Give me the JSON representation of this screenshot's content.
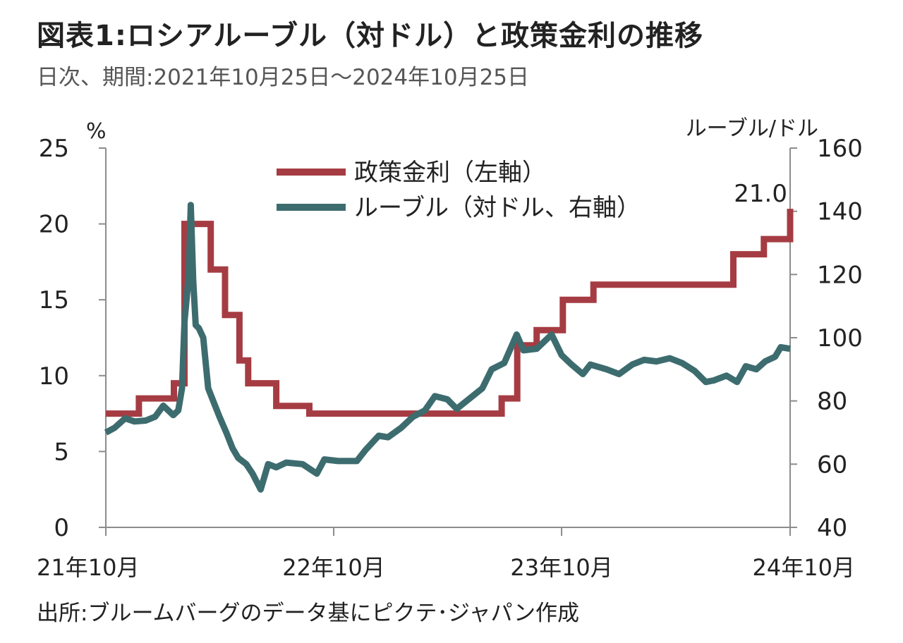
{
  "header": {
    "title": "図表1:ロシアルーブル（対ドル）と政策金利の推移",
    "subtitle": "日次、期間:2021年10月25日～2024年10月25日"
  },
  "footer": {
    "source": "出所:ブルームバーグのデータ基にピクテ･ジャパン作成"
  },
  "chart_data": {
    "type": "line",
    "left_axis": {
      "unit_label": "%",
      "range": [
        0,
        25
      ],
      "ticks": [
        0,
        5,
        10,
        15,
        20,
        25
      ]
    },
    "right_axis": {
      "unit_label": "ルーブル/ドル",
      "range": [
        40,
        160
      ],
      "ticks": [
        40,
        60,
        80,
        100,
        120,
        140,
        160
      ]
    },
    "x_axis": {
      "range": [
        "2021-10-25",
        "2024-10-25"
      ],
      "ticks": [
        {
          "date": "2021-10-25",
          "label": "21年10月"
        },
        {
          "date": "2022-10-25",
          "label": "22年10月"
        },
        {
          "date": "2023-10-25",
          "label": "23年10月"
        },
        {
          "date": "2024-10-25",
          "label": "24年10月"
        }
      ]
    },
    "grid": "none",
    "legend": {
      "placement": "top-center"
    },
    "colors": {
      "policy_rate": "#a63c43",
      "ruble": "#3d6c6f"
    },
    "annotation": {
      "text": "21.0",
      "date": "2024-10-25",
      "value": 21.0
    },
    "series": [
      {
        "name": "政策金利（左軸）",
        "axis": "left",
        "shape": "step",
        "points": [
          [
            "2021-10-25",
            7.5
          ],
          [
            "2021-12-17",
            8.5
          ],
          [
            "2022-02-11",
            9.5
          ],
          [
            "2022-02-28",
            20.0
          ],
          [
            "2022-04-11",
            17.0
          ],
          [
            "2022-05-04",
            14.0
          ],
          [
            "2022-05-27",
            11.0
          ],
          [
            "2022-06-10",
            9.5
          ],
          [
            "2022-07-25",
            8.0
          ],
          [
            "2022-09-16",
            7.5
          ],
          [
            "2023-07-21",
            8.5
          ],
          [
            "2023-08-15",
            12.0
          ],
          [
            "2023-09-15",
            13.0
          ],
          [
            "2023-10-27",
            15.0
          ],
          [
            "2023-12-15",
            16.0
          ],
          [
            "2024-07-26",
            18.0
          ],
          [
            "2024-09-13",
            19.0
          ],
          [
            "2024-10-25",
            21.0
          ]
        ]
      },
      {
        "name": "ルーブル（対ドル、右軸）",
        "axis": "right",
        "shape": "line",
        "points": [
          [
            "2021-10-25",
            70.0
          ],
          [
            "2021-11-08",
            71.5
          ],
          [
            "2021-11-25",
            74.5
          ],
          [
            "2021-12-10",
            73.5
          ],
          [
            "2021-12-28",
            73.8
          ],
          [
            "2022-01-12",
            75.0
          ],
          [
            "2022-01-25",
            78.5
          ],
          [
            "2022-02-10",
            75.5
          ],
          [
            "2022-02-18",
            77.0
          ],
          [
            "2022-02-24",
            84.0
          ],
          [
            "2022-02-28",
            105.0
          ],
          [
            "2022-03-07",
            120.0
          ],
          [
            "2022-03-10",
            142.0
          ],
          [
            "2022-03-14",
            118.0
          ],
          [
            "2022-03-18",
            104.0
          ],
          [
            "2022-03-23",
            103.0
          ],
          [
            "2022-03-30",
            100.0
          ],
          [
            "2022-04-07",
            84.0
          ],
          [
            "2022-04-15",
            80.0
          ],
          [
            "2022-04-25",
            75.0
          ],
          [
            "2022-05-06",
            70.0
          ],
          [
            "2022-05-16",
            65.0
          ],
          [
            "2022-05-25",
            62.0
          ],
          [
            "2022-06-07",
            60.0
          ],
          [
            "2022-06-17",
            57.0
          ],
          [
            "2022-06-30",
            52.0
          ],
          [
            "2022-07-12",
            60.0
          ],
          [
            "2022-07-25",
            59.0
          ],
          [
            "2022-08-10",
            60.5
          ],
          [
            "2022-09-05",
            60.0
          ],
          [
            "2022-09-28",
            57.0
          ],
          [
            "2022-10-10",
            61.5
          ],
          [
            "2022-11-01",
            61.0
          ],
          [
            "2022-12-01",
            61.0
          ],
          [
            "2022-12-15",
            64.5
          ],
          [
            "2023-01-05",
            69.0
          ],
          [
            "2023-01-20",
            68.5
          ],
          [
            "2023-02-10",
            71.5
          ],
          [
            "2023-03-01",
            75.0
          ],
          [
            "2023-03-20",
            77.0
          ],
          [
            "2023-04-05",
            81.5
          ],
          [
            "2023-04-25",
            80.5
          ],
          [
            "2023-05-10",
            77.5
          ],
          [
            "2023-06-01",
            81.0
          ],
          [
            "2023-06-20",
            84.0
          ],
          [
            "2023-07-05",
            90.0
          ],
          [
            "2023-07-25",
            92.0
          ],
          [
            "2023-08-14",
            101.0
          ],
          [
            "2023-08-25",
            96.0
          ],
          [
            "2023-09-15",
            96.5
          ],
          [
            "2023-10-09",
            101.0
          ],
          [
            "2023-10-25",
            94.5
          ],
          [
            "2023-11-10",
            91.5
          ],
          [
            "2023-11-28",
            88.5
          ],
          [
            "2023-12-10",
            91.5
          ],
          [
            "2024-01-05",
            90.0
          ],
          [
            "2024-01-25",
            88.5
          ],
          [
            "2024-02-15",
            91.5
          ],
          [
            "2024-03-05",
            93.0
          ],
          [
            "2024-03-25",
            92.5
          ],
          [
            "2024-04-15",
            93.5
          ],
          [
            "2024-05-05",
            92.0
          ],
          [
            "2024-05-25",
            89.5
          ],
          [
            "2024-06-12",
            86.0
          ],
          [
            "2024-06-25",
            86.5
          ],
          [
            "2024-07-15",
            88.0
          ],
          [
            "2024-08-01",
            86.0
          ],
          [
            "2024-08-15",
            91.0
          ],
          [
            "2024-09-01",
            90.0
          ],
          [
            "2024-09-15",
            92.5
          ],
          [
            "2024-10-01",
            94.0
          ],
          [
            "2024-10-10",
            97.0
          ],
          [
            "2024-10-25",
            96.5
          ]
        ]
      }
    ]
  }
}
